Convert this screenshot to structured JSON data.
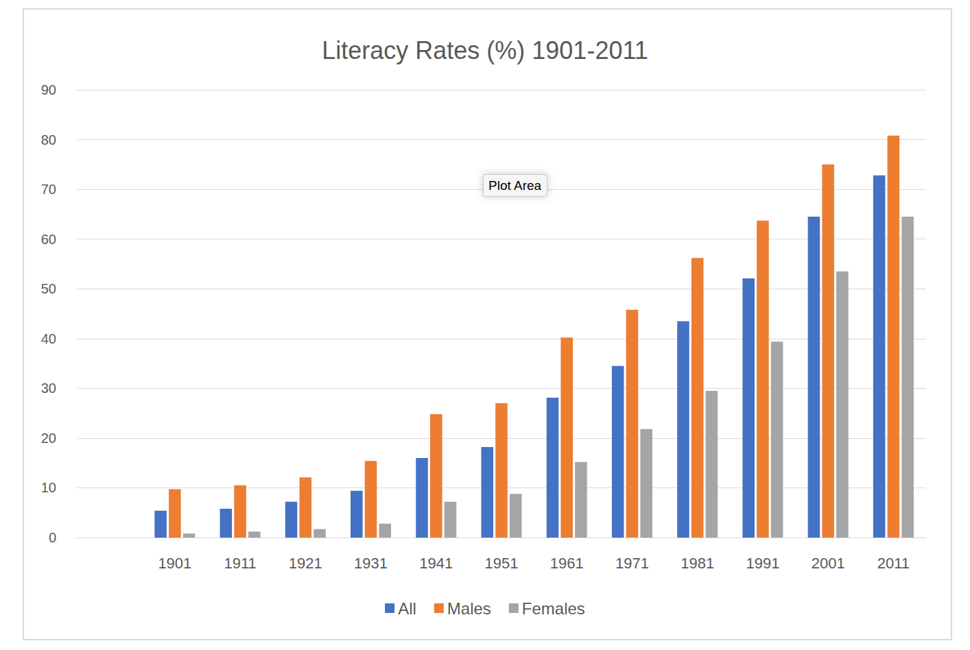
{
  "chart_data": {
    "type": "bar",
    "title": "Literacy Rates (%) 1901-2011",
    "categories": [
      null,
      "1901",
      "1911",
      "1921",
      "1931",
      "1941",
      "1951",
      "1961",
      "1971",
      "1981",
      "1991",
      "2001",
      "2011"
    ],
    "series": [
      {
        "name": "All",
        "color": "#4472c4",
        "values": [
          null,
          5.4,
          5.8,
          7.2,
          9.4,
          16.0,
          18.2,
          28.1,
          34.5,
          43.5,
          52.1,
          64.5,
          72.8
        ]
      },
      {
        "name": "Males",
        "color": "#ed7d31",
        "values": [
          null,
          9.7,
          10.5,
          12.1,
          15.4,
          24.8,
          27.0,
          40.2,
          45.8,
          56.2,
          63.7,
          75.0,
          80.8
        ]
      },
      {
        "name": "Females",
        "color": "#a5a5a5",
        "values": [
          null,
          0.8,
          1.2,
          1.7,
          2.8,
          7.2,
          8.8,
          15.2,
          21.8,
          29.5,
          39.4,
          53.5,
          64.5
        ]
      }
    ],
    "ylim": [
      0,
      90
    ],
    "yticks": [
      0,
      10,
      20,
      30,
      40,
      50,
      60,
      70,
      80,
      90
    ],
    "grid": true,
    "legend": "bottom",
    "annotation": "Plot Area"
  }
}
